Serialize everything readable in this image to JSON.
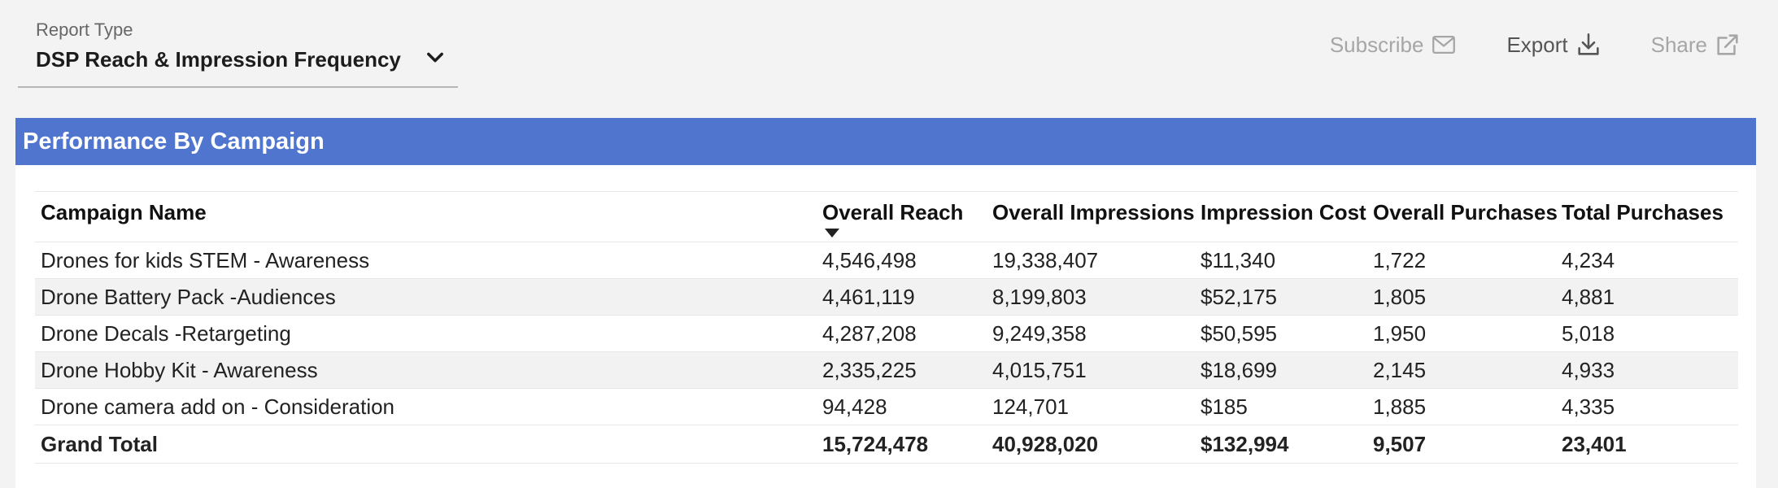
{
  "report_type": {
    "label": "Report Type",
    "value": "DSP Reach & Impression Frequency"
  },
  "actions": {
    "subscribe": "Subscribe",
    "export": "Export",
    "share": "Share"
  },
  "panel": {
    "title": "Performance By Campaign"
  },
  "table": {
    "columns": [
      "Campaign Name",
      "Overall Reach",
      "Overall Impressions",
      "Impression Cost",
      "Overall Purchases",
      "Total Purchases"
    ],
    "rows": [
      [
        "Drones for kids STEM - Awareness",
        "4,546,498",
        "19,338,407",
        "$11,340",
        "1,722",
        "4,234"
      ],
      [
        "Drone Battery Pack -Audiences",
        "4,461,119",
        "8,199,803",
        "$52,175",
        "1,805",
        "4,881"
      ],
      [
        "Drone Decals -Retargeting",
        "4,287,208",
        "9,249,358",
        "$50,595",
        "1,950",
        "5,018"
      ],
      [
        "Drone Hobby Kit - Awareness",
        "2,335,225",
        "4,015,751",
        "$18,699",
        "2,145",
        "4,933"
      ],
      [
        "Drone camera add on - Consideration",
        "94,428",
        "124,701",
        "$185",
        "1,885",
        "4,335"
      ]
    ],
    "total": [
      "Grand Total",
      "15,724,478",
      "40,928,020",
      "$132,994",
      "9,507",
      "23,401"
    ]
  },
  "colors": {
    "header_blue": "#4f75cf",
    "background": "#f3f3f3",
    "shaded_row": "#f2f2f2"
  }
}
